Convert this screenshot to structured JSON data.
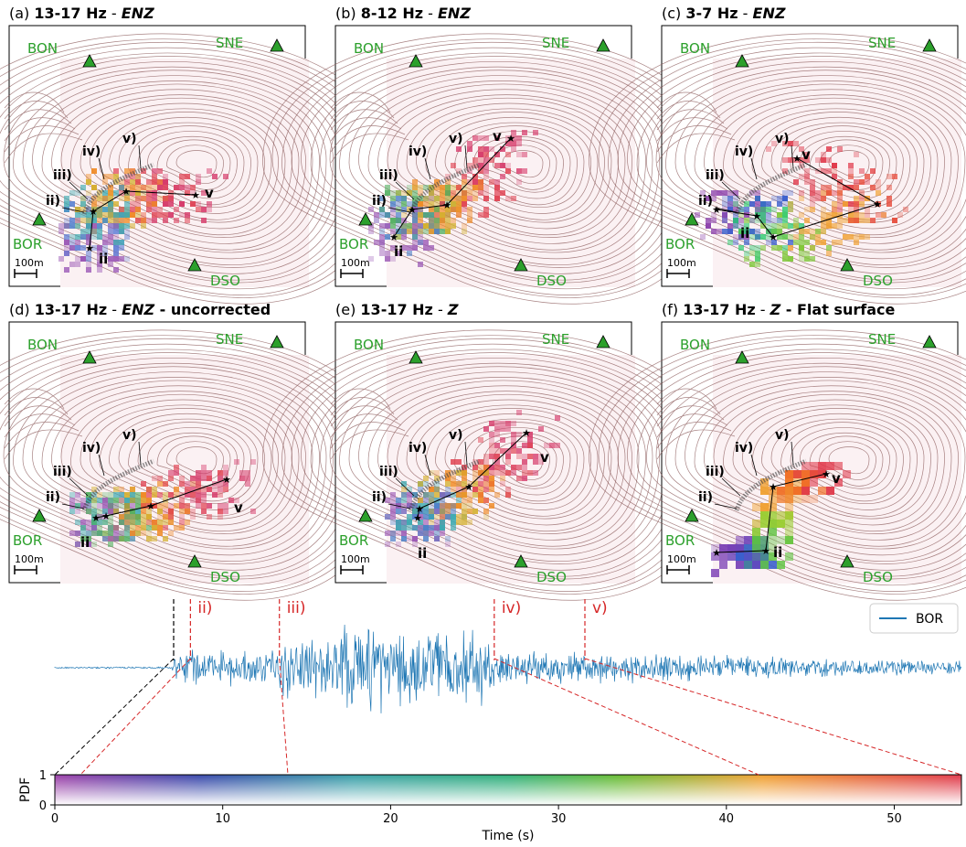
{
  "figure": {
    "panels": [
      {
        "tag": "(a)",
        "bold": "13-17 Hz",
        "sep": " - ",
        "italic": "ENZ",
        "rest": ""
      },
      {
        "tag": "(b)",
        "bold": "8-12 Hz",
        "sep": " - ",
        "italic": "ENZ",
        "rest": ""
      },
      {
        "tag": "(c)",
        "bold": "3-7 Hz",
        "sep": " - ",
        "italic": "ENZ",
        "rest": ""
      },
      {
        "tag": "(d)",
        "bold": "13-17 Hz",
        "sep": " - ",
        "italic": "ENZ",
        "rest": " - uncorrected"
      },
      {
        "tag": "(e)",
        "bold": "13-17 Hz",
        "sep": " - ",
        "italic": "Z",
        "rest": ""
      },
      {
        "tag": "(f)",
        "bold": "13-17 Hz",
        "sep": " - ",
        "italic": "Z",
        "rest": " - Flat surface"
      }
    ],
    "stations": [
      "BON",
      "SNE",
      "BOR",
      "DSO"
    ],
    "scale_bar_label": "100m",
    "phase_labels": [
      "ii",
      "iii",
      "iv",
      "v"
    ],
    "phase_labels_paren": [
      "ii)",
      "iii)",
      "iv)",
      "v)"
    ],
    "colors": {
      "station": "#2ca02c",
      "contour": "#8b5a5a",
      "trace": "#1f77b4",
      "marker_red": "#d62728",
      "marker_black": "#000000"
    }
  },
  "chart_data": [
    {
      "type": "line",
      "title": "",
      "legend": [
        "BOR"
      ],
      "legend_position": "top-right",
      "series": [
        {
          "name": "BOR",
          "description_note": ""
        }
      ],
      "time_markers": [
        {
          "time": 7.1,
          "label": "",
          "color": "#000000"
        },
        {
          "time": 8.1,
          "label": "ii)",
          "color": "#d62728"
        },
        {
          "time": 13.4,
          "label": "iii)",
          "color": "#d62728"
        },
        {
          "time": 26.2,
          "label": "iv)",
          "color": "#d62728"
        },
        {
          "time": 31.6,
          "label": "v)",
          "color": "#d62728"
        }
      ]
    },
    {
      "type": "heatmap",
      "xlabel": "Time (s)",
      "ylabel": "PDF",
      "xlim": [
        0,
        54
      ],
      "x_ticks": [
        0,
        10,
        20,
        30,
        40,
        50
      ],
      "y_ticks": [
        0,
        1
      ],
      "colormap": [
        "#8e44ad",
        "#3a5fcd",
        "#2ca6a4",
        "#2ecc71",
        "#8bc34a",
        "#f5a623",
        "#e74c3c"
      ]
    }
  ]
}
